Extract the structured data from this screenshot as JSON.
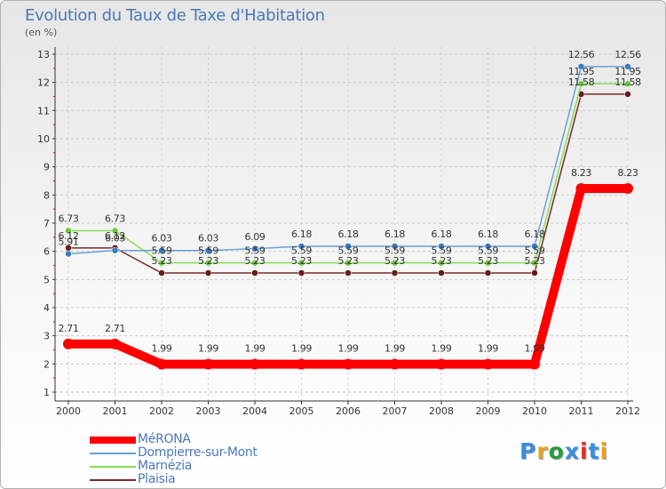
{
  "colors": {
    "title": "#4a78b8",
    "axis": "#333333",
    "grid": "#c8c8c8",
    "tick_mark": "#cc0000",
    "legend_text": "#4a78b8"
  },
  "chart_data": {
    "type": "line",
    "title": "Evolution du Taux de Taxe d'Habitation",
    "subtitle": "(en %)",
    "xlabel": "",
    "ylabel": "",
    "categories": [
      "2000",
      "2001",
      "2002",
      "2003",
      "2004",
      "2005",
      "2006",
      "2007",
      "2008",
      "2009",
      "2010",
      "2011",
      "2012"
    ],
    "ylim": [
      1,
      13
    ],
    "yticks": [
      "1",
      "2",
      "3",
      "4",
      "5",
      "6",
      "7",
      "8",
      "9",
      "10",
      "11",
      "12",
      "13"
    ],
    "grid": "horizontal dashed",
    "legend_position": "bottom-left",
    "series": [
      {
        "name": "MéRONA",
        "color": "#ff0000",
        "values": [
          2.71,
          2.71,
          1.99,
          1.99,
          1.99,
          1.99,
          1.99,
          1.99,
          1.99,
          1.99,
          1.99,
          8.23,
          8.23
        ],
        "labels": [
          "2.71",
          "2.71",
          "1.99",
          "1.99",
          "1.99",
          "1.99",
          "1.99",
          "1.99",
          "1.99",
          "1.99",
          "1.99",
          "8.23",
          "8.23"
        ]
      },
      {
        "name": "Dompierre-sur-Mont",
        "color": "#6aa0d8",
        "marker": "#3a7cc0",
        "values": [
          5.91,
          6.03,
          6.03,
          6.03,
          6.09,
          6.18,
          6.18,
          6.18,
          6.18,
          6.18,
          6.18,
          12.56,
          12.56
        ],
        "labels": [
          "5.91",
          "6.03",
          "6.03",
          "6.03",
          "6.09",
          "6.18",
          "6.18",
          "6.18",
          "6.18",
          "6.18",
          "6.18",
          "12.56",
          "12.56"
        ]
      },
      {
        "name": "Marnézia",
        "color": "#88dd55",
        "marker": "#6ec83c",
        "values": [
          6.73,
          6.73,
          5.59,
          5.59,
          5.59,
          5.59,
          5.59,
          5.59,
          5.59,
          5.59,
          5.59,
          11.95,
          11.95
        ],
        "labels": [
          "6.73",
          "6.73",
          "5.59",
          "5.59",
          "5.59",
          "5.59",
          "5.59",
          "5.59",
          "5.59",
          "5.59",
          "5.59",
          "11.95",
          "11.95"
        ]
      },
      {
        "name": "Plaisia",
        "color": "#7a2a2a",
        "marker": "#6a1a1a",
        "values": [
          6.12,
          6.12,
          5.23,
          5.23,
          5.23,
          5.23,
          5.23,
          5.23,
          5.23,
          5.23,
          5.23,
          11.58,
          11.58
        ],
        "labels": [
          "6.12",
          "6.12",
          "5.23",
          "5.23",
          "5.23",
          "5.23",
          "5.23",
          "5.23",
          "5.23",
          "5.23",
          "5.23",
          "11.58",
          "11.58"
        ]
      }
    ]
  },
  "brand": {
    "letters": [
      "P",
      "r",
      "o",
      "x",
      "i",
      "t",
      "i"
    ],
    "letter_colors": [
      "#3a8fd8",
      "#e8a020",
      "#2a9a3a",
      "#3a8fd8",
      "#e0302a",
      "#3a8fd8",
      "#e8a020"
    ]
  }
}
